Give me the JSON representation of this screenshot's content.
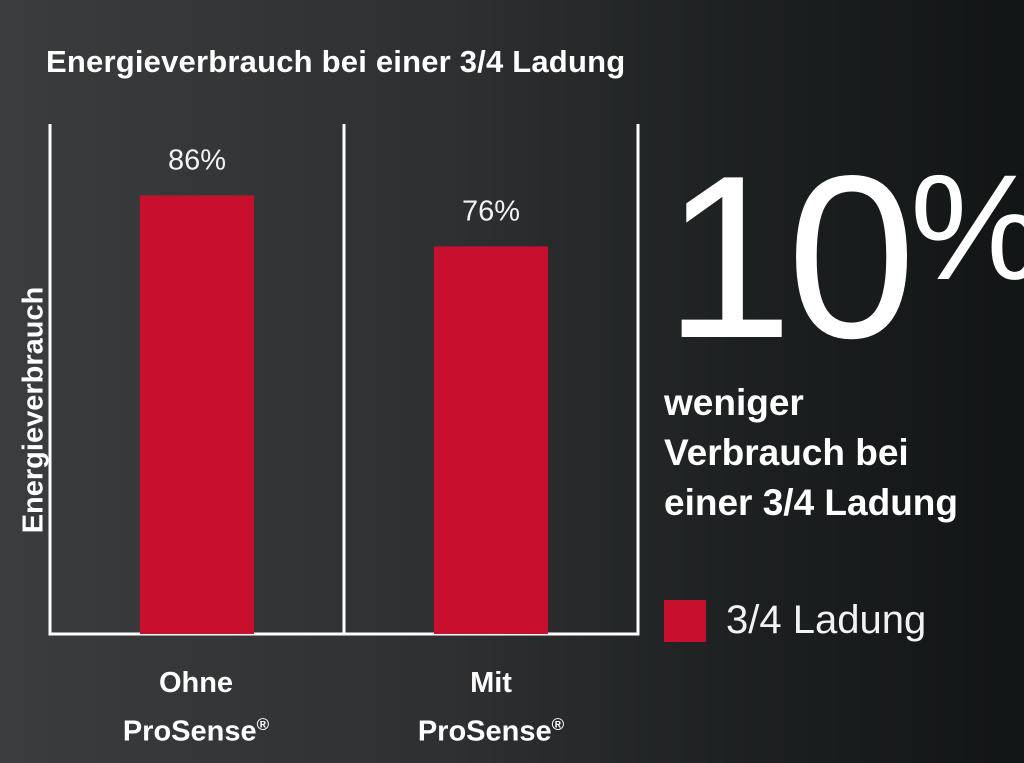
{
  "colors": {
    "bar": "#c8102e",
    "axis": "#ffffff",
    "text": "#ffffff"
  },
  "chart_data": {
    "type": "bar",
    "title": "Energieverbrauch bei einer 3/4 Ladung",
    "ylabel": "Energieverbrauch",
    "xlabel": "",
    "categories": [
      {
        "line1": "Ohne",
        "line2": "ProSense",
        "mark": "®"
      },
      {
        "line1": "Mit",
        "line2": "ProSense",
        "mark": "®"
      }
    ],
    "series": [
      {
        "name": "3/4 Ladung",
        "values": [
          86,
          76
        ],
        "labels": [
          "86%",
          "76%"
        ]
      }
    ],
    "ylim": [
      0,
      100
    ],
    "grid": false,
    "legend": "right"
  },
  "highlight": {
    "number": "10",
    "percent": "%",
    "text": [
      "weniger",
      "Verbrauch bei",
      "einer 3/4 Ladung"
    ]
  }
}
